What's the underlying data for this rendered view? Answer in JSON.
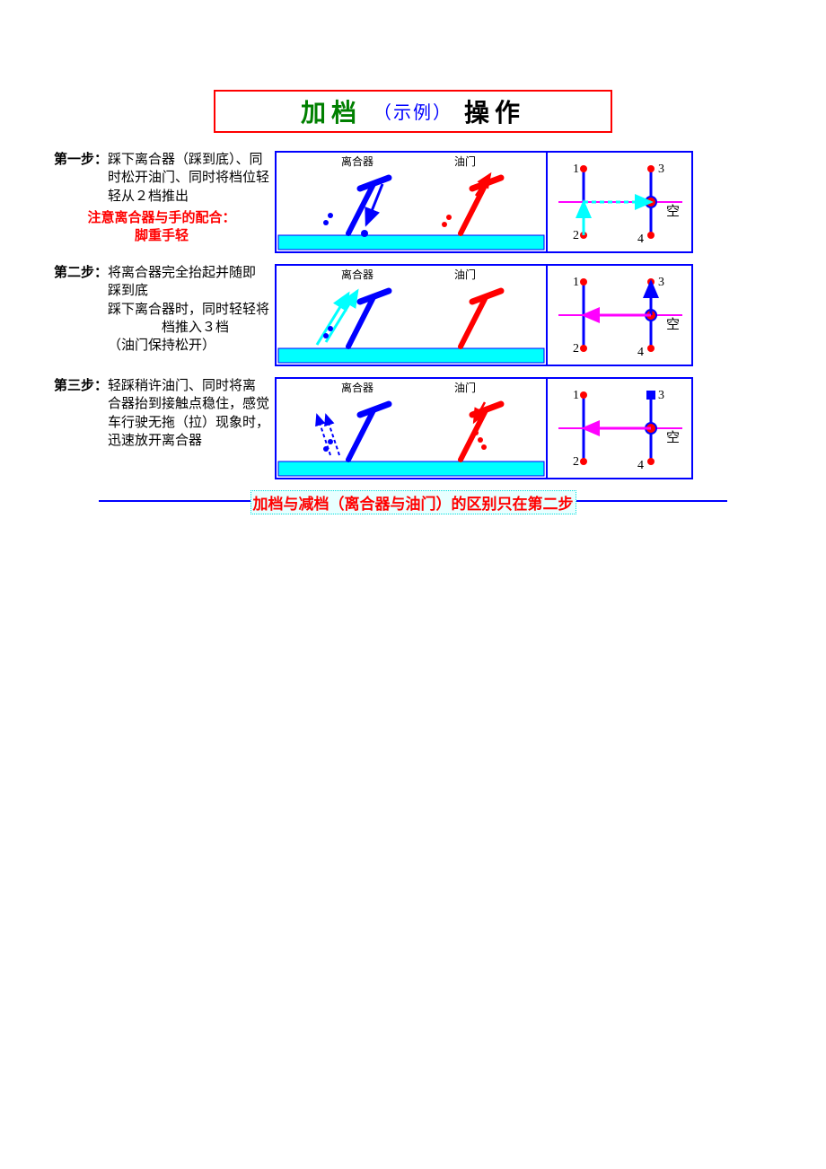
{
  "title": {
    "part1": "加档",
    "part2": "（示例）",
    "part3": "操作"
  },
  "colors": {
    "blue": "#0000ff",
    "red": "#ff0000",
    "magenta": "#ff00ff",
    "cyan": "#00ffff",
    "green": "#008000",
    "highlight": "#e8ffff"
  },
  "labels": {
    "clutch": "离合器",
    "throttle": "油门",
    "neutral": "空"
  },
  "gear_numbers": [
    "1",
    "2",
    "3",
    "4"
  ],
  "steps": [
    {
      "label": "第一步：",
      "text": "踩下离合器（踩到底）、同时松开油门、同时将档位轻轻从２档推出",
      "note": "注意离合器与手的配合：\n脚重手轻",
      "clutch_arrow": "down",
      "throttle_arrow": "up_small",
      "gear_arrows": [
        {
          "from": "g2",
          "to": "neutral_left",
          "color": "#00ffff",
          "dashed": false
        },
        {
          "from": "neutral_left",
          "to": "neutral_right",
          "color": "#00ffff",
          "dashed": true
        }
      ],
      "gear_dot": "center_right"
    },
    {
      "label": "第二步：",
      "text": "将离合器完全抬起并随即踩到底\n踩下离合器时，同时轻轻将档推入３档\n（油门保持松开）",
      "clutch_arrow": "up_down",
      "throttle_arrow": "none",
      "gear_arrows": [
        {
          "from": "neutral_right",
          "to": "g3",
          "color": "#0000ff",
          "dashed": false
        },
        {
          "from": "neutral_right",
          "to": "neutral_left",
          "color": "#ff00ff",
          "dashed": false
        }
      ],
      "gear_dot": "center_right"
    },
    {
      "label": "第三步：",
      "text": "轻踩稍许油门、同时将离合器抬到接触点稳住，感觉车行驶无拖（拉）现象时，迅速放开离合器",
      "clutch_arrow": "up",
      "throttle_arrow": "down_small",
      "gear_arrows": [
        {
          "from": "neutral_right",
          "to": "neutral_left",
          "color": "#ff00ff",
          "dashed": false
        }
      ],
      "gear_top3_square": true,
      "gear_dot": "center_right"
    }
  ],
  "footer": "加档与减档（离合器与油门）的区别只在第二步"
}
